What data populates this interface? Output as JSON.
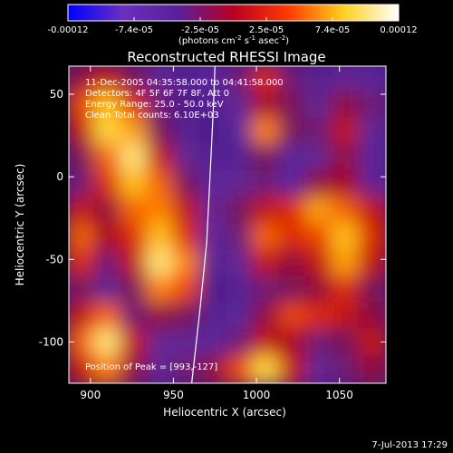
{
  "chart_data": {
    "type": "heatmap",
    "title": "Reconstructed RHESSI Image",
    "xlabel": "Heliocentric X (arcsec)",
    "ylabel": "Heliocentric Y (arcsec)",
    "xlim": [
      887,
      1078
    ],
    "ylim": [
      -125,
      67
    ],
    "xticks": [
      900,
      950,
      1000,
      1050
    ],
    "yticks": [
      -100,
      -50,
      0,
      50
    ],
    "colorbar": {
      "ticks": [
        "-0.00012",
        "-7.4e-05",
        "-2.5e-05",
        "2.5e-05",
        "7.4e-05",
        "0.00012"
      ],
      "unit_main": "(photons cm",
      "unit_exp1": "-2",
      "unit_mid": " s",
      "unit_exp2": "-1",
      "unit_end": " asec",
      "unit_exp3": "-2",
      "unit_close": ")",
      "min": -0.00012,
      "max": 0.00012,
      "colors": [
        "#0000ff",
        "#6a2fbf",
        "#5a1f9a",
        "#b80022",
        "#ff3b00",
        "#ffd020",
        "#ffffff"
      ]
    },
    "info_lines": [
      "11-Dec-2005 04:35:58.000 to 04:41:58.000",
      "Detectors: 4F 5F 6F 7F 8F, Att 0",
      "Energy Range: 25.0 - 50.0 keV",
      "Clean    Total counts: 6.10E+03"
    ],
    "peak_label": "Position of Peak = [993,-127]",
    "peak_position": [
      993,
      -127
    ],
    "limb_curve": [
      [
        975,
        67
      ],
      [
        974,
        40
      ],
      [
        972,
        0
      ],
      [
        970,
        -40
      ],
      [
        966,
        -80
      ],
      [
        961,
        -125
      ]
    ],
    "intensity_grid": {
      "rows": 12,
      "cols": 12,
      "values": [
        [
          0.45,
          0.55,
          0.4,
          0.3,
          0.2,
          0.25,
          0.35,
          0.6,
          0.35,
          0.2,
          0.3,
          0.25
        ],
        [
          0.65,
          0.85,
          0.6,
          0.35,
          0.15,
          0.2,
          0.3,
          0.5,
          0.4,
          0.3,
          0.45,
          0.35
        ],
        [
          0.55,
          0.9,
          0.8,
          0.4,
          0.2,
          0.15,
          0.25,
          0.75,
          0.4,
          0.35,
          0.55,
          0.3
        ],
        [
          0.4,
          0.7,
          0.95,
          0.55,
          0.3,
          0.2,
          0.2,
          0.4,
          0.25,
          0.3,
          0.45,
          0.25
        ],
        [
          0.35,
          0.6,
          0.85,
          0.7,
          0.4,
          0.25,
          0.3,
          0.35,
          0.25,
          0.45,
          0.5,
          0.3
        ],
        [
          0.55,
          0.45,
          0.7,
          0.75,
          0.55,
          0.3,
          0.4,
          0.55,
          0.6,
          0.8,
          0.7,
          0.55
        ],
        [
          0.7,
          0.5,
          0.6,
          0.85,
          0.6,
          0.25,
          0.35,
          0.7,
          0.6,
          0.65,
          0.85,
          0.6
        ],
        [
          0.6,
          0.35,
          0.55,
          0.95,
          0.75,
          0.2,
          0.3,
          0.55,
          0.45,
          0.55,
          0.8,
          0.55
        ],
        [
          0.4,
          0.3,
          0.4,
          0.75,
          0.65,
          0.15,
          0.2,
          0.35,
          0.4,
          0.45,
          0.6,
          0.4
        ],
        [
          0.55,
          0.7,
          0.35,
          0.45,
          0.4,
          0.2,
          0.25,
          0.45,
          0.65,
          0.6,
          0.55,
          0.45
        ],
        [
          0.7,
          0.95,
          0.55,
          0.3,
          0.3,
          0.25,
          0.35,
          0.55,
          0.5,
          0.35,
          0.4,
          0.55
        ],
        [
          0.55,
          0.75,
          0.45,
          0.3,
          0.35,
          0.45,
          0.65,
          0.9,
          0.55,
          0.3,
          0.35,
          0.45
        ]
      ]
    }
  },
  "footer": {
    "timestamp": "7-Jul-2013 17:29"
  }
}
